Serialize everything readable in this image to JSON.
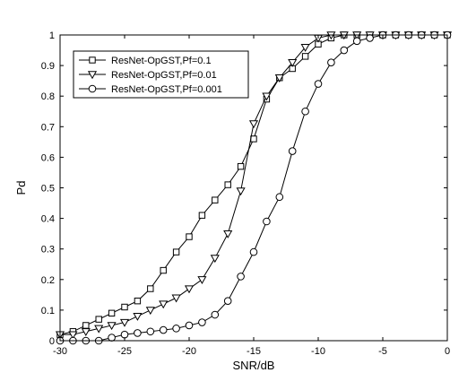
{
  "chart_data": {
    "type": "line",
    "xlabel": "SNR/dB",
    "ylabel": "Pd",
    "xlim": [
      -30,
      0
    ],
    "ylim": [
      0,
      1
    ],
    "xticks": [
      -30,
      -25,
      -20,
      -15,
      -10,
      -5,
      0
    ],
    "yticks": [
      0,
      0.1,
      0.2,
      0.3,
      0.4,
      0.5,
      0.6,
      0.7,
      0.8,
      0.9,
      1
    ],
    "xtick_labels": [
      "-30",
      "-25",
      "-20",
      "-15",
      "-10",
      "-5",
      "0"
    ],
    "ytick_labels": [
      "0",
      "0.1",
      "0.2",
      "0.3",
      "0.4",
      "0.5",
      "0.6",
      "0.7",
      "0.8",
      "0.9",
      "1"
    ],
    "grid": false,
    "legend_position": "top-left",
    "x": [
      -30,
      -29,
      -28,
      -27,
      -26,
      -25,
      -24,
      -23,
      -22,
      -21,
      -20,
      -19,
      -18,
      -17,
      -16,
      -15,
      -14,
      -13,
      -12,
      -11,
      -10,
      -9,
      -8,
      -7,
      -6,
      -5,
      -4,
      -3,
      -2,
      -1,
      0
    ],
    "series": [
      {
        "name": "ResNet-OpGST,Pf=0.1",
        "marker": "square",
        "values": [
          0.02,
          0.03,
          0.05,
          0.07,
          0.09,
          0.11,
          0.13,
          0.17,
          0.23,
          0.29,
          0.34,
          0.41,
          0.46,
          0.51,
          0.57,
          0.66,
          0.79,
          0.86,
          0.89,
          0.93,
          0.97,
          0.99,
          1,
          1,
          1,
          1,
          1,
          1,
          1,
          1,
          1
        ]
      },
      {
        "name": "ResNet-OpGST,Pf=0.01",
        "marker": "triangle-down",
        "values": [
          0.02,
          0.02,
          0.03,
          0.04,
          0.05,
          0.06,
          0.08,
          0.1,
          0.12,
          0.14,
          0.17,
          0.2,
          0.27,
          0.35,
          0.49,
          0.71,
          0.8,
          0.86,
          0.91,
          0.96,
          0.99,
          1,
          1,
          1,
          1,
          1,
          1,
          1,
          1,
          1,
          1
        ]
      },
      {
        "name": "ResNet-OpGST,Pf=0.001",
        "marker": "circle",
        "values": [
          0,
          0,
          0,
          0,
          0.01,
          0.02,
          0.025,
          0.03,
          0.035,
          0.04,
          0.05,
          0.06,
          0.085,
          0.13,
          0.21,
          0.29,
          0.39,
          0.47,
          0.62,
          0.75,
          0.84,
          0.91,
          0.95,
          0.98,
          0.99,
          1,
          1,
          1,
          1,
          1,
          1
        ]
      }
    ]
  }
}
